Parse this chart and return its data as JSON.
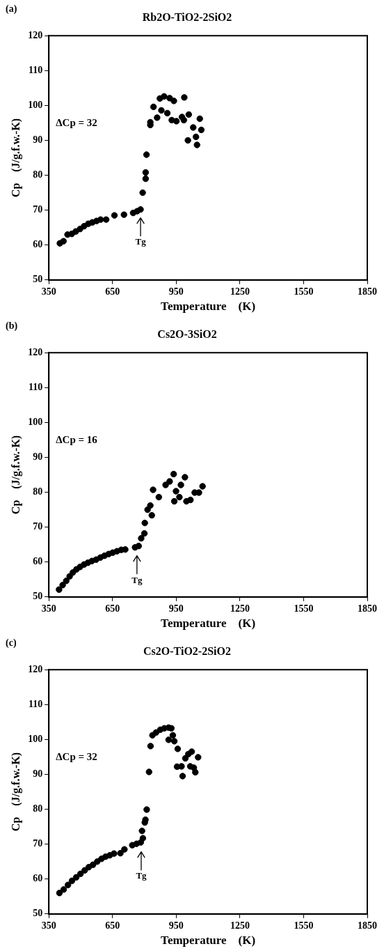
{
  "chart_data": [
    {
      "type": "scatter",
      "title": "Rb2O-TiO2-2SiO2",
      "xlabel": "Temperature    (K)",
      "ylabel": "Cp    (J/g.f.w.-K)",
      "annotations": [
        "(a)",
        "ΔCp = 32",
        {
          "text": "Tg",
          "x": 782,
          "y": 69
        }
      ],
      "xlim": [
        350,
        1850
      ],
      "xticks": [
        350,
        650,
        950,
        1250,
        1550,
        1850
      ],
      "ylim": [
        50,
        120
      ],
      "yticks": [
        50,
        60,
        70,
        80,
        90,
        100,
        110,
        120
      ],
      "grid": false,
      "legend": false,
      "marker": "circle",
      "series": [
        {
          "color": "#000000",
          "x": [
            402,
            419,
            438,
            458,
            477,
            497,
            516,
            536,
            555,
            575,
            594,
            620,
            659,
            704,
            747,
            766,
            782,
            792,
            806,
            806,
            810,
            828,
            828,
            843,
            860,
            873,
            880,
            893,
            908,
            919,
            929,
            939,
            951,
            968,
            977,
            988,
            986,
            1009,
            1005,
            1024,
            1030,
            1043,
            1048,
            1061,
            1068
          ],
          "values": [
            60.5,
            61.1,
            63,
            63.2,
            63.9,
            64.6,
            65.4,
            66.1,
            66.5,
            66.9,
            67.3,
            67.3,
            68.5,
            68.7,
            69.2,
            69.7,
            70.2,
            75,
            79,
            80.8,
            85.9,
            94.4,
            95.2,
            99.6,
            96.5,
            102,
            98.6,
            102.6,
            97.8,
            102.1,
            95.8,
            101.3,
            95.5,
            null,
            96.7,
            102.3,
            95.8,
            97.4,
            90,
            null,
            93.7,
            91,
            88.7,
            96.2,
            93
          ]
        }
      ]
    },
    {
      "type": "scatter",
      "title": "Cs2O-3SiO2",
      "xlabel": "Temperature    (K)",
      "ylabel": "Cp    (J/g.f.w.-K)",
      "annotations": [
        "(b)",
        "ΔCp = 16",
        {
          "text": "Tg",
          "x": 765,
          "y": 63
        }
      ],
      "xlim": [
        350,
        1850
      ],
      "xticks": [
        350,
        650,
        950,
        1250,
        1550,
        1850
      ],
      "ylim": [
        50,
        120
      ],
      "yticks": [
        50,
        60,
        70,
        80,
        90,
        100,
        110,
        120
      ],
      "grid": false,
      "legend": false,
      "marker": "circle",
      "series": [
        {
          "color": "#000000",
          "x": [
            398,
            415,
            432,
            448,
            463,
            480,
            497,
            516,
            534,
            553,
            573,
            593,
            612,
            632,
            651,
            671,
            691,
            710,
            756,
            773,
            785,
            800,
            802,
            815,
            828,
            835,
            841,
            868,
            900,
            919,
            938,
            941,
            949,
            965,
            972,
            991,
            998,
            1017,
            1037,
            1057,
            1074
          ],
          "values": [
            52.1,
            53.4,
            54.6,
            55.9,
            57,
            57.9,
            58.6,
            59.3,
            59.8,
            60.3,
            60.7,
            61.3,
            61.8,
            62.3,
            62.7,
            63.1,
            63.5,
            63.6,
            64.2,
            64.6,
            66.8,
            68.2,
            71.2,
            75,
            76.2,
            73.4,
            80.7,
            78.6,
            82.1,
            83.1,
            85.2,
            77.4,
            80.3,
            78.6,
            82.1,
            84.3,
            77.4,
            77.8,
            79.9,
            79.9,
            81.7
          ]
        }
      ]
    },
    {
      "type": "scatter",
      "title": "Cs2O-TiO2-2SiO2",
      "xlabel": "Temperature    (K)",
      "ylabel": "Cp    (J/g.f.w.-K)",
      "annotations": [
        "(c)",
        "ΔCp = 32",
        {
          "text": "Tg",
          "x": 785,
          "y": 69
        }
      ],
      "xlim": [
        350,
        1850
      ],
      "xticks": [
        350,
        650,
        950,
        1250,
        1550,
        1850
      ],
      "ylim": [
        50,
        120
      ],
      "yticks": [
        50,
        60,
        70,
        80,
        90,
        100,
        110,
        120
      ],
      "grid": false,
      "legend": false,
      "marker": "circle",
      "series": [
        {
          "color": "#000000",
          "x": [
            400,
            420,
            440,
            459,
            479,
            499,
            519,
            538,
            558,
            578,
            598,
            617,
            637,
            657,
            687,
            706,
            743,
            763,
            783,
            793,
            789,
            802,
            805,
            811,
            822,
            829,
            838,
            855,
            875,
            894,
            914,
            927,
            914,
            934,
            941,
            957,
            954,
            975,
            980,
            993,
            1007,
            1023,
            1016,
            1033,
            1040,
            1053
          ],
          "values": [
            56,
            57,
            58.3,
            59.5,
            60.5,
            61.5,
            62.5,
            63.4,
            64.1,
            65,
            65.8,
            66.4,
            66.8,
            67.3,
            67.4,
            68.5,
            69.7,
            70.1,
            70.5,
            71.7,
            73.8,
            76.2,
            77,
            79.9,
            90.7,
            98.1,
            101.2,
            102,
            102.8,
            103.2,
            103.4,
            103.2,
            99.9,
            101.2,
            99.5,
            97.3,
            92.2,
            92.3,
            89.5,
            94.6,
            95.8,
            96.5,
            92.3,
            91.9,
            90.6,
            94.9
          ]
        }
      ]
    }
  ]
}
